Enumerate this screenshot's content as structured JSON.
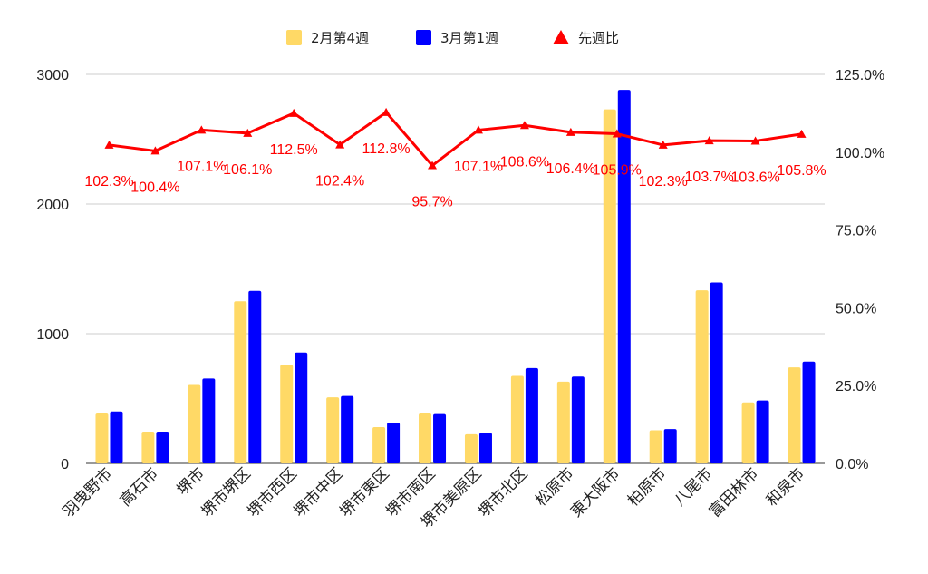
{
  "chart_data": {
    "type": "bar",
    "categories": [
      "羽曳野市",
      "高石市",
      "堺市",
      "堺市堺区",
      "堺市西区",
      "堺市中区",
      "堺市東区",
      "堺市南区",
      "堺市美原区",
      "堺市北区",
      "松原市",
      "東大阪市",
      "柏原市",
      "八尾市",
      "富田林市",
      "和泉市"
    ],
    "series": [
      {
        "name": "2月第4週",
        "type": "bar",
        "axis": "left",
        "color": "#FFD966",
        "values": [
          385,
          245,
          605,
          1250,
          760,
          510,
          280,
          385,
          225,
          675,
          630,
          2730,
          255,
          1335,
          470,
          740
        ]
      },
      {
        "name": "3月第1週",
        "type": "bar",
        "axis": "left",
        "color": "#0000FF",
        "values": [
          400,
          245,
          655,
          1330,
          855,
          520,
          315,
          380,
          235,
          735,
          670,
          2880,
          265,
          1395,
          485,
          785
        ]
      },
      {
        "name": "先週比",
        "type": "line",
        "axis": "right",
        "color": "#FF0000",
        "values": [
          102.3,
          100.4,
          107.1,
          106.1,
          112.5,
          102.4,
          112.8,
          95.7,
          107.1,
          108.6,
          106.4,
          105.9,
          102.3,
          103.7,
          103.6,
          105.8
        ],
        "labels": [
          "102.3%",
          "100.4%",
          "107.1%",
          "106.1%",
          "112.5%",
          "102.4%",
          "112.8%",
          "95.7%",
          "107.1%",
          "108.6%",
          "106.4%",
          "105.9%",
          "102.3%",
          "103.7%",
          "103.6%",
          "105.8%"
        ]
      }
    ],
    "y_left": {
      "min": 0,
      "max": 3000,
      "ticks": [
        "0",
        "1000",
        "2000",
        "3000"
      ]
    },
    "y_right": {
      "min": 0,
      "max": 125,
      "ticks": [
        "0.0%",
        "25.0%",
        "50.0%",
        "75.0%",
        "100.0%",
        "125.0%"
      ]
    },
    "grid": true,
    "legend_position": "top",
    "title": "",
    "xlabel": "",
    "ylabel": ""
  }
}
